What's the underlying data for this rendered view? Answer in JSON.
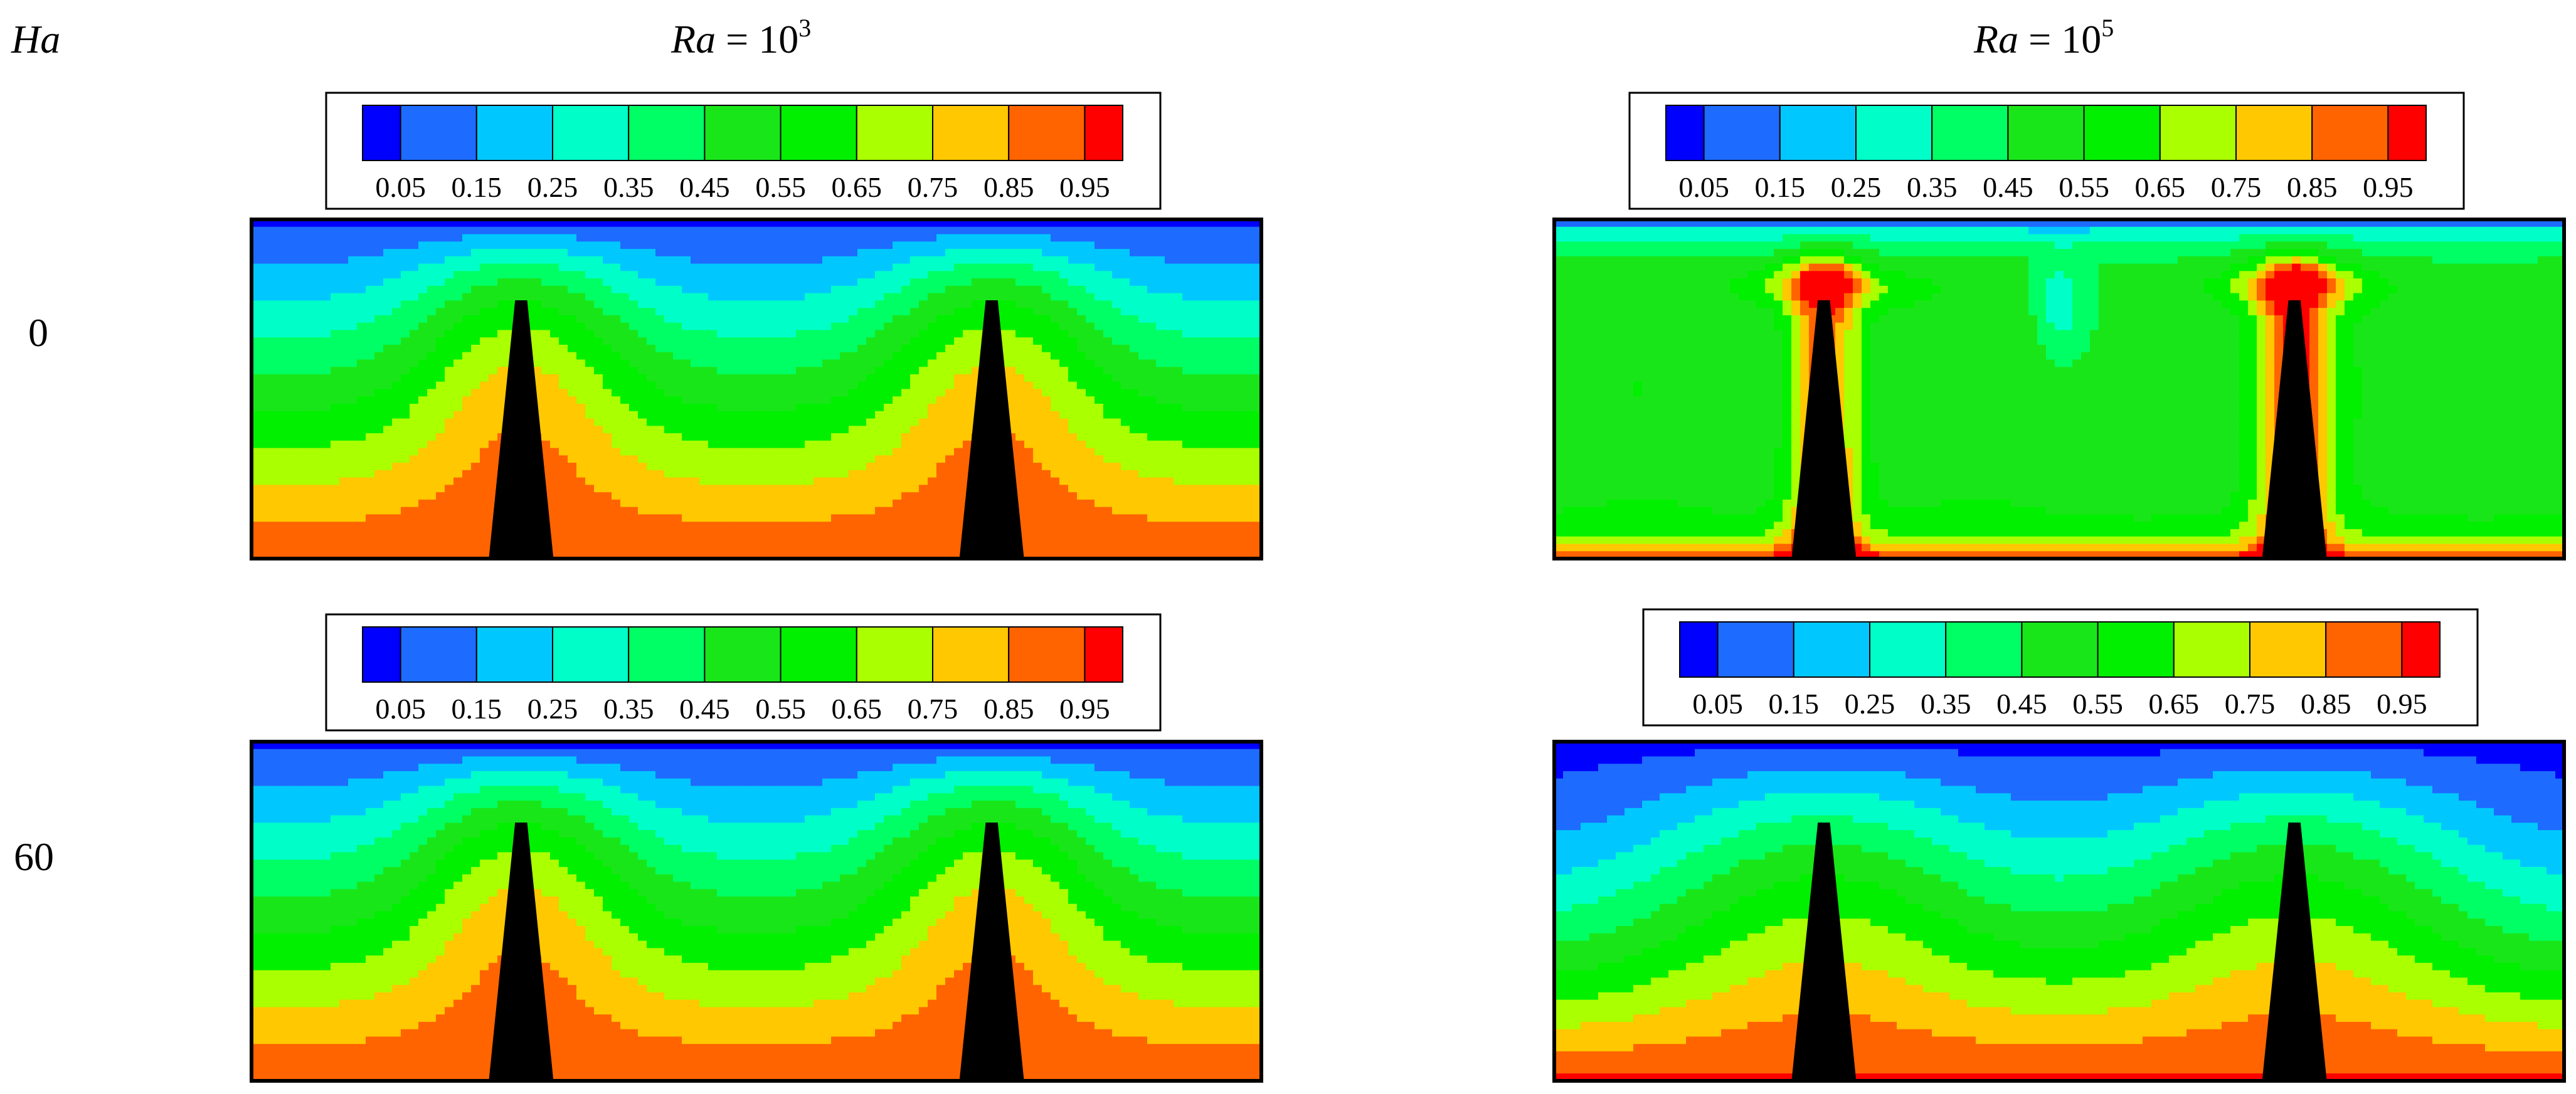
{
  "chart_data": {
    "type": "heatmap",
    "kind": "isotherm contour plots",
    "header_label": "Ha",
    "columns": [
      {
        "ra_label": "Ra",
        "equals": " = 10",
        "exponent": "3"
      },
      {
        "ra_label": "Ra",
        "equals": " = 10",
        "exponent": "5"
      }
    ],
    "rows": [
      {
        "ha": "0"
      },
      {
        "ha": "60"
      }
    ],
    "colorbar": {
      "levels": [
        0.05,
        0.15,
        0.25,
        0.35,
        0.45,
        0.55,
        0.65,
        0.75,
        0.85,
        0.95
      ],
      "tick_labels": [
        "0.05",
        "0.15",
        "0.25",
        "0.35",
        "0.45",
        "0.55",
        "0.65",
        "0.75",
        "0.85",
        "0.95"
      ],
      "colors": [
        "#0000ff",
        "#1e6bff",
        "#00c8ff",
        "#00ffc8",
        "#00ff64",
        "#19e619",
        "#00f000",
        "#aaff00",
        "#ffc800",
        "#ff6400",
        "#ff0000"
      ]
    },
    "panels": [
      {
        "name": "Ha=0, Ra=10^3",
        "pattern": "conduction"
      },
      {
        "name": "Ha=0, Ra=10^5",
        "pattern": "convection-cells"
      },
      {
        "name": "Ha=60, Ra=10^3",
        "pattern": "conduction"
      },
      {
        "name": "Ha=60, Ra=10^5",
        "pattern": "damped-convection"
      }
    ]
  }
}
